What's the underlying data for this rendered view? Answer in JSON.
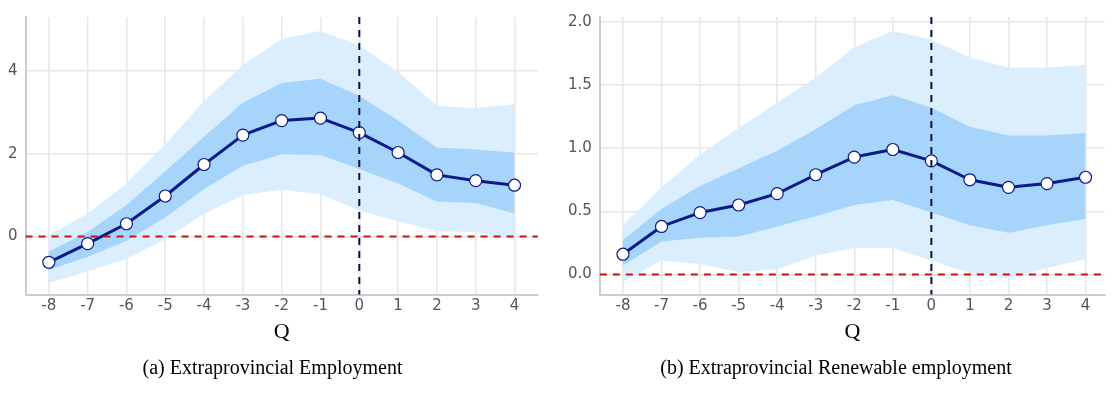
{
  "chart_data": [
    {
      "type": "line",
      "xlabel": "Q",
      "annotations": [
        "(a) Extraprovincial Employment"
      ],
      "x": [
        -8,
        -7,
        -6,
        -5,
        -4,
        -3,
        -2,
        -1,
        0,
        1,
        2,
        3,
        4
      ],
      "xlim": [
        -8.6,
        4.6
      ],
      "xticks": [
        -8,
        -7,
        -6,
        -5,
        -4,
        -3,
        -2,
        -1,
        0,
        1,
        2,
        3,
        4
      ],
      "ylim": [
        -1.4,
        5.3
      ],
      "yticks": [
        0,
        2,
        4
      ],
      "grid": true,
      "legend": false,
      "marker": "circle",
      "line_style": "solid",
      "series": [
        {
          "type": "area",
          "color": "#dbeefd",
          "values": [
            null,
            null,
            null,
            null,
            null,
            null,
            null,
            null,
            null,
            null,
            null,
            null,
            null
          ],
          "lower": [
            -1.12,
            -0.84,
            -0.54,
            -0.06,
            0.55,
            1.0,
            1.13,
            1.02,
            0.63,
            0.37,
            0.13,
            0.11,
            -0.08
          ],
          "upper": [
            0.03,
            0.55,
            1.28,
            2.23,
            3.27,
            4.14,
            4.77,
            4.96,
            4.61,
            3.97,
            3.16,
            3.1,
            3.2
          ]
        },
        {
          "type": "area",
          "color": "#a6d4fa",
          "values": [
            null,
            null,
            null,
            null,
            null,
            null,
            null,
            null,
            null,
            null,
            null,
            null,
            null
          ],
          "lower": [
            -0.8,
            -0.49,
            -0.1,
            0.46,
            1.15,
            1.71,
            1.99,
            1.97,
            1.63,
            1.28,
            0.85,
            0.81,
            0.56
          ],
          "upper": [
            -0.36,
            0.11,
            0.76,
            1.58,
            2.41,
            3.23,
            3.71,
            3.81,
            3.4,
            2.8,
            2.15,
            2.1,
            2.03
          ]
        },
        {
          "type": "line",
          "color": "#0b1a8a",
          "values": [
            -0.62,
            -0.17,
            0.31,
            0.98,
            1.74,
            2.45,
            2.8,
            2.86,
            2.51,
            2.03,
            1.49,
            1.35,
            1.24
          ]
        }
      ],
      "ref_lines": [
        {
          "axis": "y",
          "value": 0,
          "color": "#cc1111",
          "line_style": "dashed"
        },
        {
          "axis": "x",
          "value": 0,
          "color": "#101040",
          "line_style": "dashed"
        }
      ]
    },
    {
      "type": "line",
      "xlabel": "Q",
      "annotations": [
        "(b) Extraprovincial Renewable employment"
      ],
      "x": [
        -8,
        -7,
        -6,
        -5,
        -4,
        -3,
        -2,
        -1,
        0,
        1,
        2,
        3,
        4
      ],
      "xlim": [
        -8.6,
        4.5
      ],
      "xticks": [
        -8,
        -7,
        -6,
        -5,
        -4,
        -3,
        -2,
        -1,
        0,
        1,
        2,
        3,
        4
      ],
      "ylim": [
        -0.16,
        2.04
      ],
      "yticks": [
        {
          "value": 0,
          "label": "0.0"
        },
        0.5,
        {
          "value": 1,
          "label": "1.0"
        },
        1.5,
        {
          "value": 2,
          "label": "2.0"
        }
      ],
      "grid": true,
      "legend": false,
      "marker": "circle",
      "line_style": "solid",
      "series": [
        {
          "type": "area",
          "color": "#dbeefd",
          "values": [
            null,
            null,
            null,
            null,
            null,
            null,
            null,
            null,
            null,
            null,
            null,
            null,
            null
          ],
          "lower": [
            -0.06,
            0.11,
            0.08,
            0.02,
            0.04,
            0.15,
            0.21,
            0.21,
            0.11,
            0.01,
            -0.03,
            0.05,
            0.12
          ],
          "upper": [
            0.39,
            0.69,
            0.95,
            1.16,
            1.36,
            1.56,
            1.8,
            1.93,
            1.86,
            1.72,
            1.64,
            1.64,
            1.66
          ]
        },
        {
          "type": "area",
          "color": "#a6d4fa",
          "values": [
            null,
            null,
            null,
            null,
            null,
            null,
            null,
            null,
            null,
            null,
            null,
            null,
            null
          ],
          "lower": [
            0.07,
            0.26,
            0.29,
            0.3,
            0.38,
            0.46,
            0.55,
            0.59,
            0.49,
            0.39,
            0.33,
            0.39,
            0.44
          ],
          "upper": [
            0.27,
            0.52,
            0.7,
            0.84,
            0.98,
            1.15,
            1.34,
            1.42,
            1.32,
            1.17,
            1.1,
            1.1,
            1.12
          ]
        },
        {
          "type": "line",
          "color": "#0b1a8a",
          "values": [
            0.16,
            0.38,
            0.49,
            0.55,
            0.64,
            0.79,
            0.93,
            0.99,
            0.9,
            0.75,
            0.69,
            0.72,
            0.77
          ]
        }
      ],
      "ref_lines": [
        {
          "axis": "y",
          "value": 0,
          "color": "#cc1111",
          "line_style": "dashed"
        },
        {
          "axis": "x",
          "value": 0,
          "color": "#101040",
          "line_style": "dashed"
        }
      ]
    }
  ]
}
